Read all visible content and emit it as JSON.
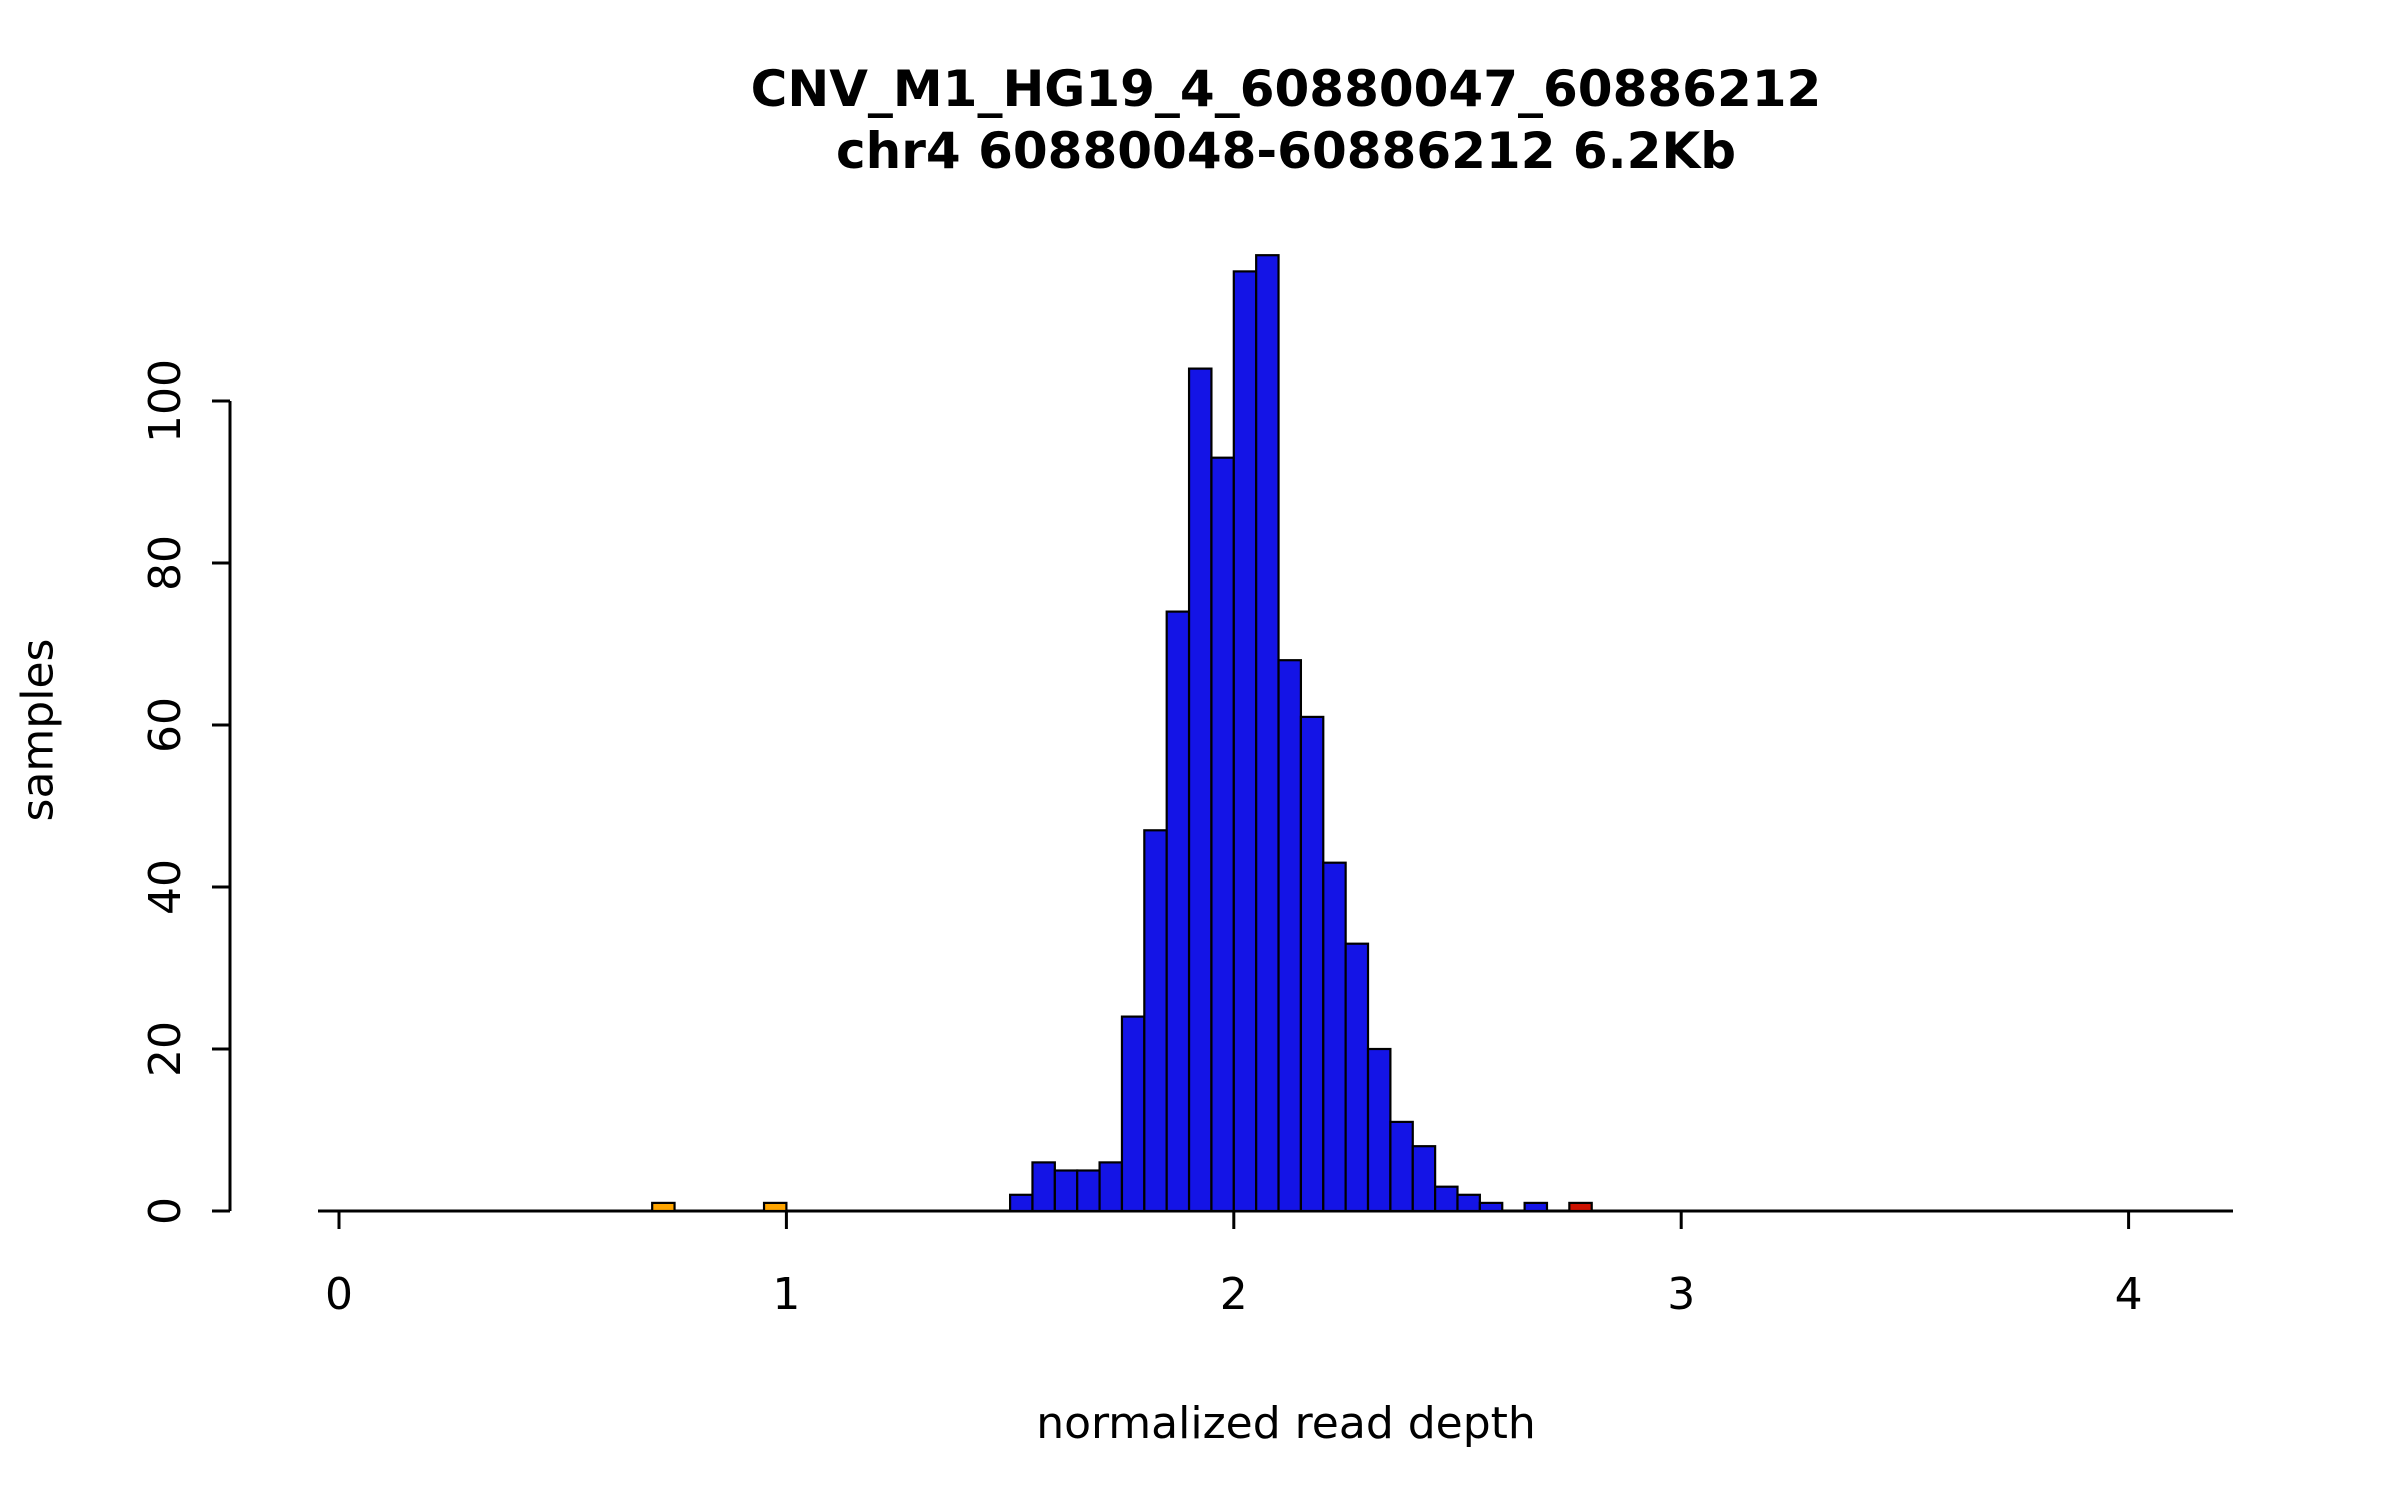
{
  "chart_data": {
    "type": "bar",
    "subtype": "histogram",
    "title_line1": "CNV_M1_HG19_4_60880047_60886212",
    "title_line2": "chr4 60880048-60886212 6.2Kb",
    "xlabel": "normalized read depth",
    "ylabel": "samples",
    "xlim": [
      0,
      4.25
    ],
    "ylim": [
      0,
      118
    ],
    "x_ticks": [
      0,
      1,
      2,
      3,
      4
    ],
    "y_ticks": [
      0,
      20,
      40,
      60,
      80,
      100
    ],
    "bin_width": 0.05,
    "grid": false,
    "legend": "none",
    "colors": {
      "blue": "#1414E6",
      "orange": "#FFA500",
      "red": "#CC1100",
      "axis": "#000000",
      "bar_stroke": "#000000"
    },
    "bars": [
      {
        "x": 0.7,
        "count": 1,
        "color": "orange"
      },
      {
        "x": 0.95,
        "count": 1,
        "color": "orange"
      },
      {
        "x": 1.5,
        "count": 2,
        "color": "blue"
      },
      {
        "x": 1.55,
        "count": 6,
        "color": "blue"
      },
      {
        "x": 1.6,
        "count": 5,
        "color": "blue"
      },
      {
        "x": 1.65,
        "count": 5,
        "color": "blue"
      },
      {
        "x": 1.7,
        "count": 6,
        "color": "blue"
      },
      {
        "x": 1.75,
        "count": 24,
        "color": "blue"
      },
      {
        "x": 1.8,
        "count": 47,
        "color": "blue"
      },
      {
        "x": 1.85,
        "count": 74,
        "color": "blue"
      },
      {
        "x": 1.9,
        "count": 104,
        "color": "blue"
      },
      {
        "x": 1.95,
        "count": 93,
        "color": "blue"
      },
      {
        "x": 2.0,
        "count": 116,
        "color": "blue"
      },
      {
        "x": 2.05,
        "count": 118,
        "color": "blue"
      },
      {
        "x": 2.1,
        "count": 68,
        "color": "blue"
      },
      {
        "x": 2.15,
        "count": 61,
        "color": "blue"
      },
      {
        "x": 2.2,
        "count": 43,
        "color": "blue"
      },
      {
        "x": 2.25,
        "count": 33,
        "color": "blue"
      },
      {
        "x": 2.3,
        "count": 20,
        "color": "blue"
      },
      {
        "x": 2.35,
        "count": 11,
        "color": "blue"
      },
      {
        "x": 2.4,
        "count": 8,
        "color": "blue"
      },
      {
        "x": 2.45,
        "count": 3,
        "color": "blue"
      },
      {
        "x": 2.5,
        "count": 2,
        "color": "blue"
      },
      {
        "x": 2.55,
        "count": 1,
        "color": "blue"
      },
      {
        "x": 2.65,
        "count": 1,
        "color": "blue"
      },
      {
        "x": 2.75,
        "count": 1,
        "color": "red"
      }
    ]
  }
}
